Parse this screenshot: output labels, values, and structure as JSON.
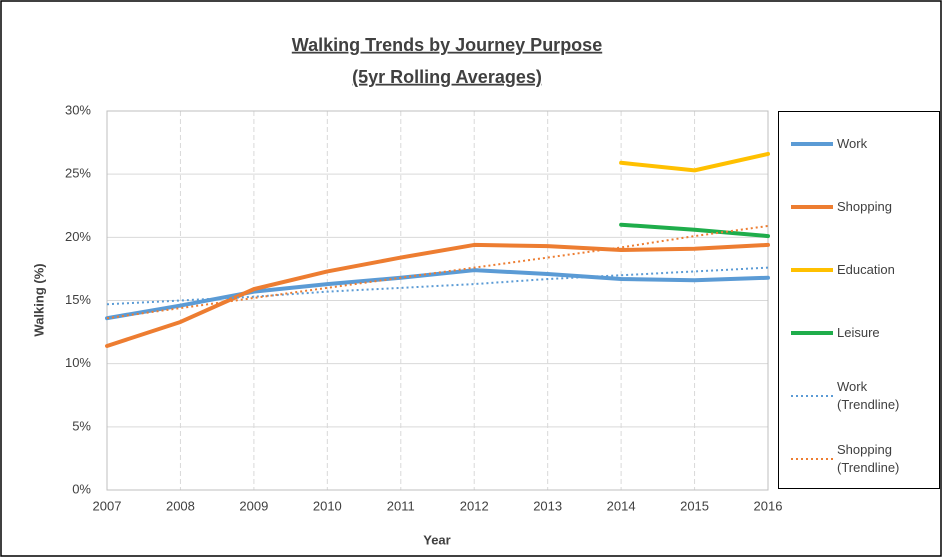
{
  "chart_data": {
    "type": "line",
    "title": "Walking Trends by Journey Purpose",
    "subtitle": "(5yr Rolling Averages)",
    "x_label": "Year",
    "y_label": "Walking (%)",
    "x": [
      2007,
      2008,
      2009,
      2010,
      2011,
      2012,
      2013,
      2014,
      2015,
      2016
    ],
    "xlim": [
      2007,
      2016
    ],
    "xticks": [
      2007,
      2008,
      2009,
      2010,
      2011,
      2012,
      2013,
      2014,
      2015,
      2016
    ],
    "ylim": [
      0,
      30
    ],
    "yticks": [
      {
        "value": 0,
        "label": "0%"
      },
      {
        "value": 5,
        "label": "5%"
      },
      {
        "value": 10,
        "label": "10%"
      },
      {
        "value": 15,
        "label": "15%"
      },
      {
        "value": 20,
        "label": "20%"
      },
      {
        "value": 25,
        "label": "25%"
      },
      {
        "value": 30,
        "label": "30%"
      }
    ],
    "grid": true,
    "legend": "right",
    "series": [
      {
        "name": "Work",
        "color": "#5b9bd5",
        "dash": false,
        "values": [
          13.6,
          14.6,
          15.7,
          16.3,
          16.8,
          17.4,
          17.1,
          16.7,
          16.6,
          16.8
        ]
      },
      {
        "name": "Shopping",
        "color": "#ed7d31",
        "dash": false,
        "values": [
          11.4,
          13.3,
          15.9,
          17.3,
          18.4,
          19.4,
          19.3,
          19.0,
          19.1,
          19.4
        ]
      },
      {
        "name": "Education",
        "color": "#ffc000",
        "dash": false,
        "values": [
          null,
          null,
          null,
          null,
          null,
          null,
          null,
          25.9,
          25.3,
          26.6
        ]
      },
      {
        "name": "Leisure",
        "color": "#1fad4b",
        "dash": false,
        "values": [
          null,
          null,
          null,
          null,
          null,
          null,
          null,
          21.0,
          20.6,
          20.1
        ]
      },
      {
        "name": "Work (Trendline)",
        "color": "#5b9bd5",
        "dash": true,
        "values": [
          14.7,
          15.0,
          15.3,
          15.7,
          16.0,
          16.3,
          16.7,
          17.0,
          17.3,
          17.6
        ]
      },
      {
        "name": "Shopping (Trendline)",
        "color": "#ed7d31",
        "dash": true,
        "values": [
          13.6,
          14.4,
          15.2,
          16.0,
          16.8,
          17.6,
          18.4,
          19.2,
          20.1,
          20.9
        ]
      }
    ]
  }
}
